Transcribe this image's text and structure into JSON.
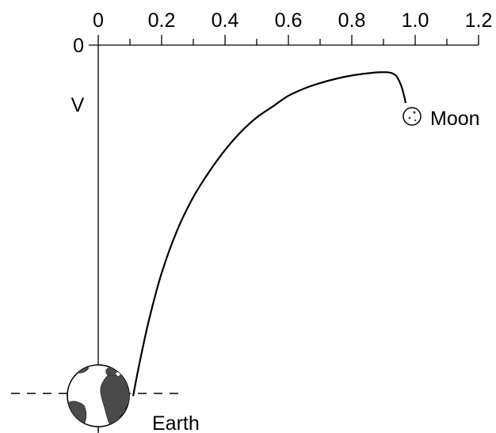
{
  "chart_data": {
    "type": "line",
    "xlabel": "",
    "ylabel": "V",
    "x_ticks": [
      "0",
      "0.2",
      "0.4",
      "0.6",
      "0.8",
      "1.0",
      "1.2"
    ],
    "x_tick_values": [
      0,
      0.2,
      0.4,
      0.6,
      0.8,
      1.0,
      1.2
    ],
    "x_minor_step": 0.1,
    "y_ticks": [
      "0"
    ],
    "xlim": [
      0,
      1.2
    ],
    "grid": false,
    "series": [
      {
        "points": [
          {
            "x": 0.11,
            "y": -0.97
          },
          {
            "x": 0.13,
            "y": -0.88
          },
          {
            "x": 0.16,
            "y": -0.76
          },
          {
            "x": 0.2,
            "y": -0.63
          },
          {
            "x": 0.25,
            "y": -0.51
          },
          {
            "x": 0.3,
            "y": -0.42
          },
          {
            "x": 0.35,
            "y": -0.35
          },
          {
            "x": 0.4,
            "y": -0.29
          },
          {
            "x": 0.45,
            "y": -0.24
          },
          {
            "x": 0.5,
            "y": -0.2
          },
          {
            "x": 0.55,
            "y": -0.17
          },
          {
            "x": 0.6,
            "y": -0.14
          },
          {
            "x": 0.65,
            "y": -0.12
          },
          {
            "x": 0.7,
            "y": -0.105
          },
          {
            "x": 0.75,
            "y": -0.093
          },
          {
            "x": 0.8,
            "y": -0.084
          },
          {
            "x": 0.85,
            "y": -0.078
          },
          {
            "x": 0.89,
            "y": -0.075
          },
          {
            "x": 0.92,
            "y": -0.076
          },
          {
            "x": 0.94,
            "y": -0.085
          },
          {
            "x": 0.955,
            "y": -0.11
          },
          {
            "x": 0.965,
            "y": -0.14
          },
          {
            "x": 0.97,
            "y": -0.16
          }
        ]
      }
    ],
    "annotations": [
      {
        "id": "earth",
        "text": "Earth",
        "x": 0.0
      },
      {
        "id": "moon",
        "text": "Moon",
        "x": 1.0
      }
    ]
  }
}
